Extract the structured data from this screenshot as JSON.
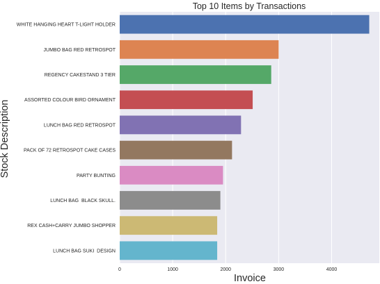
{
  "chart_data": {
    "type": "bar",
    "orientation": "horizontal",
    "title": "Top 10 Items by Transactions",
    "xlabel": "Invoice",
    "ylabel": "Stock Description",
    "xlim": [
      0,
      4900
    ],
    "xticks": [
      0,
      1000,
      2000,
      3000,
      4000
    ],
    "grid": true,
    "categories": [
      "WHITE HANGING HEART T-LIGHT HOLDER",
      "JUMBO BAG RED RETROSPOT",
      "REGENCY CAKESTAND 3 TIER",
      "ASSORTED COLOUR BIRD ORNAMENT",
      "LUNCH BAG RED RETROSPOT",
      "PACK OF 72 RETROSPOT CAKE CASES",
      "PARTY BUNTING",
      "LUNCH BAG  BLACK SKULL.",
      "REX CASH+CARRY JUMBO SHOPPER",
      "LUNCH BAG SUKI  DESIGN"
    ],
    "values": [
      4710,
      3000,
      2860,
      2510,
      2290,
      2120,
      1950,
      1900,
      1840,
      1840
    ],
    "colors": [
      "#4c72b0",
      "#dd8452",
      "#55a868",
      "#c44e52",
      "#8172b3",
      "#937860",
      "#da8bc3",
      "#8c8c8c",
      "#ccb974",
      "#64b5cd"
    ]
  }
}
